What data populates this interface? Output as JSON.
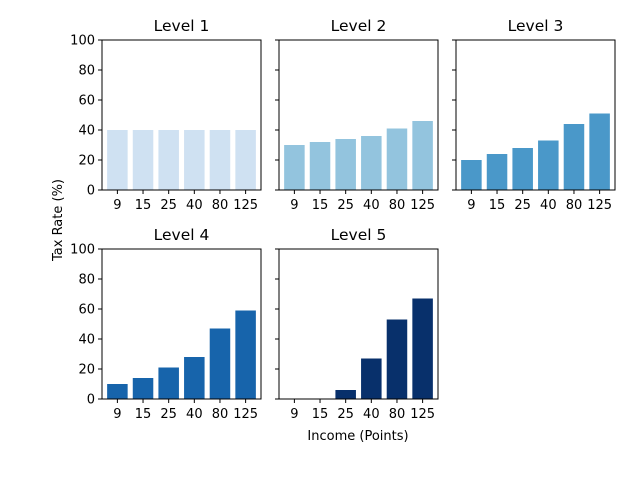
{
  "chart_data": {
    "type": "bar",
    "xlabel": "Income (Points)",
    "ylabel": "Tax Rate (%)",
    "ylim": [
      0,
      100
    ],
    "yticks": [
      "0",
      "20",
      "40",
      "60",
      "80",
      "100"
    ],
    "categories": [
      "9",
      "15",
      "25",
      "40",
      "80",
      "125"
    ],
    "grid": false,
    "legend": "none",
    "panels": [
      {
        "title": "Level 1",
        "color": "#cfe1f2",
        "values": [
          40,
          40,
          40,
          40,
          40,
          40
        ]
      },
      {
        "title": "Level 2",
        "color": "#93c4de",
        "values": [
          30,
          32,
          34,
          36,
          41,
          46
        ]
      },
      {
        "title": "Level 3",
        "color": "#4a98c9",
        "values": [
          20,
          24,
          28,
          33,
          44,
          51
        ]
      },
      {
        "title": "Level 4",
        "color": "#1764ab",
        "values": [
          10,
          14,
          21,
          28,
          47,
          59
        ]
      },
      {
        "title": "Level 5",
        "color": "#08306b",
        "values": [
          0,
          0,
          6,
          27,
          53,
          67
        ]
      }
    ]
  }
}
